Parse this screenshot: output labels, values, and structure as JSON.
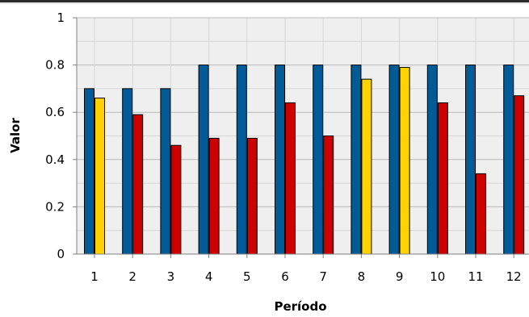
{
  "chart_data": {
    "type": "bar",
    "title": "",
    "xlabel": "Período",
    "ylabel": "Valor",
    "ylim": [
      0,
      1
    ],
    "yticks": [
      "0",
      "0.2",
      "0.4",
      "0.6",
      "0.8",
      "1"
    ],
    "categories": [
      "1",
      "2",
      "3",
      "4",
      "5",
      "6",
      "7",
      "8",
      "9",
      "10",
      "11",
      "12"
    ],
    "grid": true,
    "series": [
      {
        "color": "#005b96",
        "values": [
          0.7,
          0.7,
          0.7,
          0.8,
          0.8,
          0.8,
          0.8,
          0.8,
          0.8,
          0.8,
          0.8,
          0.8
        ]
      },
      {
        "values": [
          0.66,
          0.59,
          0.46,
          0.49,
          0.49,
          0.64,
          0.5,
          0.74,
          0.79,
          0.64,
          0.34,
          0.67
        ],
        "colors": [
          "#ffd200",
          "#cc0000",
          "#cc0000",
          "#cc0000",
          "#cc0000",
          "#cc0000",
          "#cc0000",
          "#ffd200",
          "#ffd200",
          "#cc0000",
          "#cc0000",
          "#cc0000"
        ]
      }
    ]
  }
}
